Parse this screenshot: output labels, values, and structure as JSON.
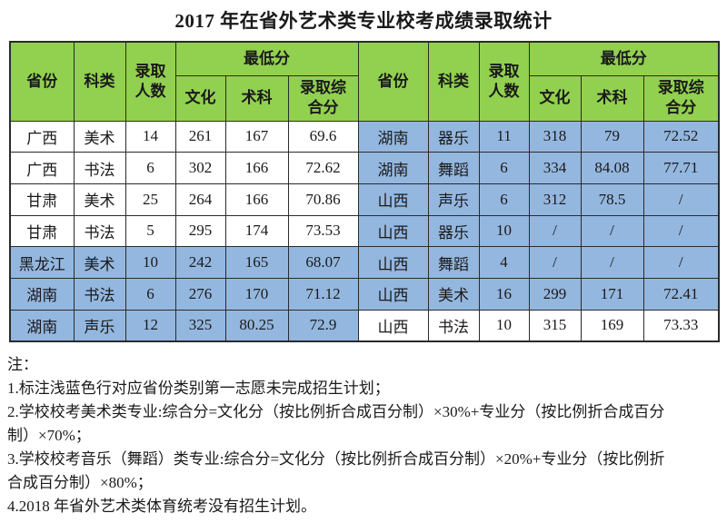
{
  "title": "2017 年在省外艺术类专业校考成绩录取统计",
  "colors": {
    "header_green": "#92D050",
    "highlight_blue": "#94B7DF",
    "border": "#2b2b2b"
  },
  "table": {
    "headers": {
      "province": "省份",
      "category": "科类",
      "count": "录取\n人数",
      "min_score": "最低分",
      "culture": "文化",
      "skill": "术科",
      "composite": "录取综\n合分"
    },
    "rows": [
      {
        "left": {
          "province": "广西",
          "category": "美术",
          "count": "14",
          "culture": "261",
          "skill": "167",
          "composite": "69.6",
          "highlighted": false
        },
        "right": {
          "province": "湖南",
          "category": "器乐",
          "count": "11",
          "culture": "318",
          "skill": "79",
          "composite": "72.52",
          "highlighted": true
        }
      },
      {
        "left": {
          "province": "广西",
          "category": "书法",
          "count": "6",
          "culture": "302",
          "skill": "166",
          "composite": "72.62",
          "highlighted": false
        },
        "right": {
          "province": "湖南",
          "category": "舞蹈",
          "count": "6",
          "culture": "334",
          "skill": "84.08",
          "composite": "77.71",
          "highlighted": true
        }
      },
      {
        "left": {
          "province": "甘肃",
          "category": "美术",
          "count": "25",
          "culture": "264",
          "skill": "166",
          "composite": "70.86",
          "highlighted": false
        },
        "right": {
          "province": "山西",
          "category": "声乐",
          "count": "6",
          "culture": "312",
          "skill": "78.5",
          "composite": "/",
          "highlighted": true
        }
      },
      {
        "left": {
          "province": "甘肃",
          "category": "书法",
          "count": "5",
          "culture": "295",
          "skill": "174",
          "composite": "73.53",
          "highlighted": false
        },
        "right": {
          "province": "山西",
          "category": "器乐",
          "count": "10",
          "culture": "/",
          "skill": "/",
          "composite": "/",
          "highlighted": true
        }
      },
      {
        "left": {
          "province": "黑龙江",
          "category": "美术",
          "count": "10",
          "culture": "242",
          "skill": "165",
          "composite": "68.07",
          "highlighted": true
        },
        "right": {
          "province": "山西",
          "category": "舞蹈",
          "count": "4",
          "culture": "/",
          "skill": "/",
          "composite": "/",
          "highlighted": true
        }
      },
      {
        "left": {
          "province": "湖南",
          "category": "书法",
          "count": "6",
          "culture": "276",
          "skill": "170",
          "composite": "71.12",
          "highlighted": true
        },
        "right": {
          "province": "山西",
          "category": "美术",
          "count": "16",
          "culture": "299",
          "skill": "171",
          "composite": "72.41",
          "highlighted": true
        }
      },
      {
        "left": {
          "province": "湖南",
          "category": "声乐",
          "count": "12",
          "culture": "325",
          "skill": "80.25",
          "composite": "72.9",
          "highlighted": true
        },
        "right": {
          "province": "山西",
          "category": "书法",
          "count": "10",
          "culture": "315",
          "skill": "169",
          "composite": "73.33",
          "highlighted": false
        }
      }
    ]
  },
  "notes": {
    "lines": [
      "注：",
      "1.标注浅蓝色行对应省份类别第一志愿未完成招生计划；",
      "2.学校校考美术类专业:综合分=文化分（按比例折合成百分制）×30%+专业分（按比例折合成百分",
      "制）×70%；",
      "3.学校校考音乐（舞蹈）类专业:综合分=文化分（按比例折合成百分制）×20%+专业分（按比例折",
      "合成百分制）×80%；",
      "4.2018 年省外艺术类体育统考没有招生计划。"
    ]
  }
}
